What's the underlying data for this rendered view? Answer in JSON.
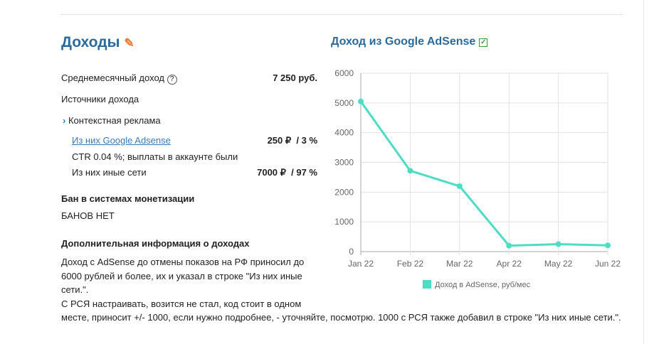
{
  "title": "Доходы",
  "avg_label": "Среднемесячный доход",
  "avg_value": "7 250 руб.",
  "sources_label": "Источники дохода",
  "context_label": "Контекстная реклама",
  "adsense_link": "Из них Google Adsense",
  "adsense_value": "250 ₽  / 3 %",
  "ctr_text": "CTR 0.04 %; выплаты в аккаунте были",
  "other_label": "Из них иные сети",
  "other_value": "7000 ₽  / 97 %",
  "ban_heading": "Бан в системах монетизации",
  "ban_value": "БАНОВ НЕТ",
  "extra_heading": "Дополнительная информация о доходах",
  "extra_lines": [
    "Доход с AdSense до отмены показов на РФ приносил до",
    "6000 рублей и более, их и указал в строке \"Из них иные",
    "сети.\".",
    "С РСЯ настраивать, возится не стал, код стоит в одном",
    "месте, приносит +/- 1000, если нужно подробнее, - уточняйте, посмотрю. 1000 с РСЯ также добавил в строке \"Из них иные сети.\"."
  ],
  "chart_title": "Доход из Google AdSense",
  "chart_data": {
    "type": "line",
    "categories": [
      "Jan 22",
      "Feb 22",
      "Mar 22",
      "Apr 22",
      "May 22",
      "Jun 22"
    ],
    "series": [
      {
        "name": "Доход в AdSense, руб/мес",
        "values": [
          5050,
          2720,
          2200,
          200,
          250,
          210
        ],
        "color": "#4fdcc4"
      }
    ],
    "yticks": [
      "0",
      "1000",
      "2000",
      "3000",
      "4000",
      "5000",
      "6000"
    ],
    "ylim": [
      0,
      6000
    ],
    "grid": true,
    "legend": "bottom"
  }
}
